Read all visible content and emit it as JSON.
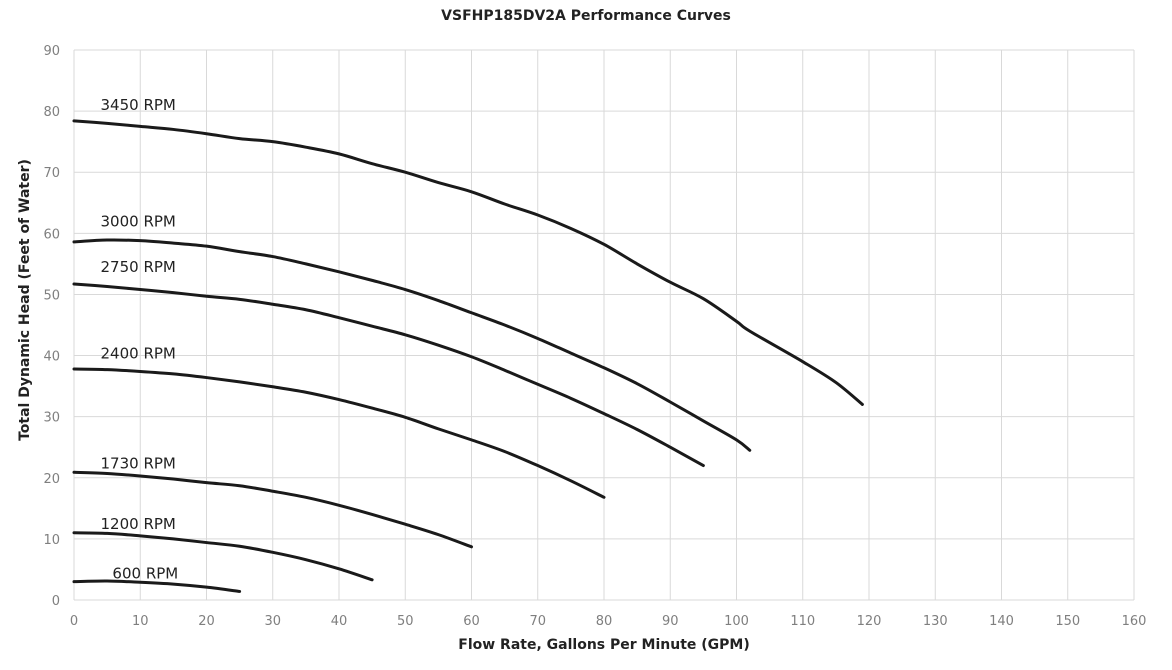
{
  "chart_data": {
    "type": "line",
    "title": "VSFHP185DV2A Performance Curves",
    "xlabel": "Flow Rate, Gallons Per Minute (GPM)",
    "ylabel": "Total Dynamic Head (Feet of Water)",
    "xlim": [
      0,
      160
    ],
    "ylim": [
      0,
      90
    ],
    "xticks": [
      0,
      10,
      20,
      30,
      40,
      50,
      60,
      70,
      80,
      90,
      100,
      110,
      120,
      130,
      140,
      150,
      160
    ],
    "yticks": [
      0,
      10,
      20,
      30,
      40,
      50,
      60,
      70,
      80,
      90
    ],
    "grid": true,
    "legend": "inline labels",
    "series": [
      {
        "name": "3450 RPM",
        "label_pos": [
          4,
          81
        ],
        "x": [
          0,
          5,
          10,
          15,
          20,
          25,
          30,
          35,
          40,
          45,
          50,
          55,
          60,
          65,
          70,
          75,
          80,
          85,
          90,
          95,
          100,
          102,
          110,
          115,
          119
        ],
        "y": [
          78.4,
          78,
          77.5,
          77,
          76.3,
          75.5,
          75,
          74.1,
          73,
          71.4,
          70,
          68.3,
          66.8,
          64.8,
          63,
          60.8,
          58.2,
          55,
          52,
          49.3,
          45.6,
          44,
          39,
          35.6,
          32
        ]
      },
      {
        "name": "3000 RPM",
        "label_pos": [
          4,
          61.9
        ],
        "x": [
          0,
          5,
          10,
          15,
          20,
          25,
          30,
          35,
          40,
          45,
          50,
          55,
          60,
          65,
          70,
          75,
          80,
          85,
          90,
          95,
          100,
          102
        ],
        "y": [
          58.6,
          58.9,
          58.8,
          58.4,
          57.9,
          57,
          56.2,
          55,
          53.7,
          52.3,
          50.8,
          49,
          47,
          45,
          42.8,
          40.4,
          38,
          35.4,
          32.4,
          29.3,
          26.2,
          24.5
        ]
      },
      {
        "name": "2750 RPM",
        "label_pos": [
          4,
          54.5
        ],
        "x": [
          0,
          5,
          10,
          15,
          20,
          25,
          30,
          35,
          40,
          45,
          50,
          55,
          60,
          65,
          70,
          75,
          80,
          85,
          90,
          95
        ],
        "y": [
          51.7,
          51.3,
          50.8,
          50.3,
          49.7,
          49.2,
          48.4,
          47.5,
          46.2,
          44.8,
          43.4,
          41.7,
          39.8,
          37.6,
          35.3,
          33,
          30.5,
          27.9,
          25,
          22
        ]
      },
      {
        "name": "2400 RPM",
        "label_pos": [
          4,
          40.3
        ],
        "x": [
          0,
          5,
          10,
          15,
          20,
          25,
          30,
          35,
          40,
          45,
          50,
          55,
          60,
          65,
          70,
          75,
          80
        ],
        "y": [
          37.8,
          37.7,
          37.4,
          37,
          36.4,
          35.7,
          34.9,
          34,
          32.8,
          31.4,
          29.9,
          28,
          26.2,
          24.3,
          22,
          19.5,
          16.8
        ]
      },
      {
        "name": "1730 RPM",
        "label_pos": [
          4,
          22.3
        ],
        "x": [
          0,
          5,
          10,
          15,
          20,
          25,
          30,
          35,
          40,
          45,
          50,
          55,
          60
        ],
        "y": [
          20.9,
          20.7,
          20.3,
          19.8,
          19.2,
          18.7,
          17.8,
          16.8,
          15.5,
          14,
          12.4,
          10.7,
          8.7
        ]
      },
      {
        "name": "1200 RPM",
        "label_pos": [
          4,
          12.4
        ],
        "x": [
          0,
          5,
          10,
          15,
          20,
          25,
          30,
          35,
          40,
          45
        ],
        "y": [
          11,
          10.9,
          10.5,
          10,
          9.4,
          8.8,
          7.8,
          6.6,
          5.1,
          3.3
        ]
      },
      {
        "name": "600 RPM",
        "label_pos": [
          5.8,
          4.3
        ],
        "x": [
          0,
          5,
          10,
          15,
          20,
          25
        ],
        "y": [
          3,
          3.1,
          2.9,
          2.6,
          2.1,
          1.4
        ]
      }
    ],
    "colors": {
      "line": "#1a1a1a",
      "grid": "#d9d9d9",
      "tick": "#7f7f7f"
    }
  }
}
